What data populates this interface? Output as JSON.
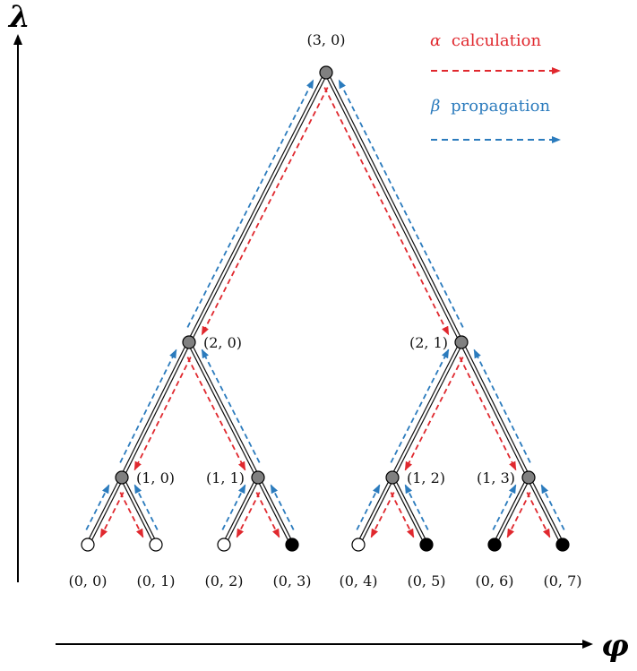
{
  "axes": {
    "y_label": "λ",
    "x_label": "φ"
  },
  "legend": {
    "alpha": {
      "symbol": "α",
      "text": "calculation",
      "color": "#e0282e"
    },
    "beta": {
      "symbol": "β",
      "text": "propagation",
      "color": "#2b7bbd"
    }
  },
  "colors": {
    "edge": "#111111",
    "internal_node": "#808080",
    "leaf_frozen": "#000000",
    "leaf_info": "#ffffff",
    "alpha": "#e0282e",
    "beta": "#2b7bbd"
  },
  "nodes": [
    {
      "id": "3-0",
      "label": "(3, 0)",
      "type": "internal"
    },
    {
      "id": "2-0",
      "label": "(2, 0)",
      "type": "internal"
    },
    {
      "id": "2-1",
      "label": "(2, 1)",
      "type": "internal"
    },
    {
      "id": "1-0",
      "label": "(1, 0)",
      "type": "internal"
    },
    {
      "id": "1-1",
      "label": "(1, 1)",
      "type": "internal"
    },
    {
      "id": "1-2",
      "label": "(1, 2)",
      "type": "internal"
    },
    {
      "id": "1-3",
      "label": "(1, 3)",
      "type": "internal"
    },
    {
      "id": "0-0",
      "label": "(0, 0)",
      "type": "leaf-white"
    },
    {
      "id": "0-1",
      "label": "(0, 1)",
      "type": "leaf-white"
    },
    {
      "id": "0-2",
      "label": "(0, 2)",
      "type": "leaf-white"
    },
    {
      "id": "0-3",
      "label": "(0, 3)",
      "type": "leaf-black"
    },
    {
      "id": "0-4",
      "label": "(0, 4)",
      "type": "leaf-white"
    },
    {
      "id": "0-5",
      "label": "(0, 5)",
      "type": "leaf-black"
    },
    {
      "id": "0-6",
      "label": "(0, 6)",
      "type": "leaf-black"
    },
    {
      "id": "0-7",
      "label": "(0, 7)",
      "type": "leaf-black"
    }
  ],
  "edges": [
    [
      "3-0",
      "2-0"
    ],
    [
      "3-0",
      "2-1"
    ],
    [
      "2-0",
      "1-0"
    ],
    [
      "2-0",
      "1-1"
    ],
    [
      "2-1",
      "1-2"
    ],
    [
      "2-1",
      "1-3"
    ],
    [
      "1-0",
      "0-0"
    ],
    [
      "1-0",
      "0-1"
    ],
    [
      "1-1",
      "0-2"
    ],
    [
      "1-1",
      "0-3"
    ],
    [
      "1-2",
      "0-4"
    ],
    [
      "1-2",
      "0-5"
    ],
    [
      "1-3",
      "0-6"
    ],
    [
      "1-3",
      "0-7"
    ]
  ]
}
